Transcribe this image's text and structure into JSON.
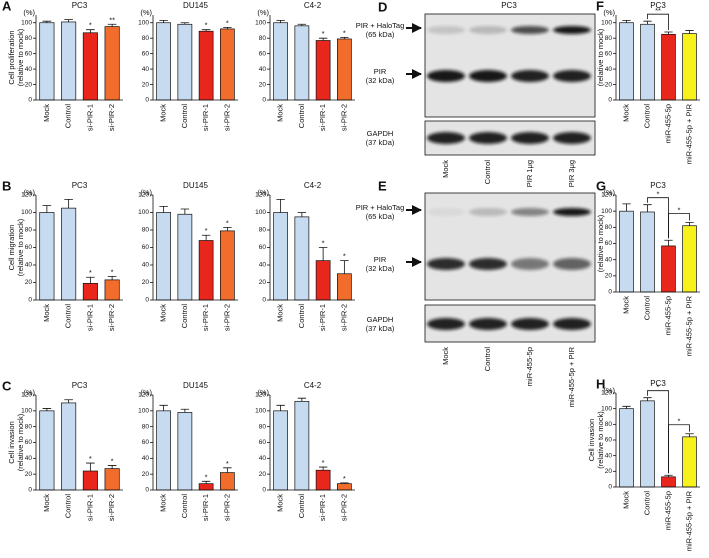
{
  "chart_data": [
    {
      "type": "bar",
      "panel": "A",
      "title": "PC3",
      "yunit": "(%)",
      "ylabel": [
        "Cell proliferation",
        "(relative to mock)"
      ],
      "categories": [
        "Mock",
        "Control",
        "si-PIR-1",
        "si-PIR-2"
      ],
      "values": [
        100,
        101,
        87,
        95
      ],
      "errors": [
        2,
        3,
        4,
        3
      ],
      "colors": [
        "#c6daf0",
        "#c6daf0",
        "#e8261c",
        "#f26c2b"
      ],
      "significance": [
        null,
        null,
        "*",
        "**"
      ],
      "ylim": [
        0,
        110
      ],
      "yticks": [
        0,
        20,
        40,
        60,
        80,
        100
      ]
    },
    {
      "type": "bar",
      "title": "DU145",
      "yunit": "(%)",
      "categories": [
        "Mock",
        "Control",
        "si-PIR-1",
        "si-PIR-2"
      ],
      "values": [
        100,
        98,
        89,
        92
      ],
      "errors": [
        3,
        2,
        2,
        2
      ],
      "colors": [
        "#c6daf0",
        "#c6daf0",
        "#e8261c",
        "#f26c2b"
      ],
      "significance": [
        null,
        null,
        "*",
        "*"
      ],
      "ylim": [
        0,
        110
      ],
      "yticks": [
        0,
        20,
        40,
        60,
        80,
        100
      ]
    },
    {
      "type": "bar",
      "title": "C4-2",
      "yunit": "(%)",
      "categories": [
        "Mock",
        "Control",
        "si-PIR-1",
        "si-PIR-2"
      ],
      "values": [
        100,
        96,
        77,
        79
      ],
      "errors": [
        3,
        2,
        3,
        2
      ],
      "colors": [
        "#c6daf0",
        "#c6daf0",
        "#e8261c",
        "#f26c2b"
      ],
      "significance": [
        null,
        null,
        "*",
        "*"
      ],
      "ylim": [
        0,
        110
      ],
      "yticks": [
        0,
        20,
        40,
        60,
        80,
        100
      ]
    },
    {
      "type": "bar",
      "panel": "B",
      "title": "PC3",
      "yunit": "(%)",
      "ylabel": [
        "Cell migration",
        "(relative to mock)"
      ],
      "categories": [
        "Mock",
        "Control",
        "si-PIR-1",
        "si-PIR-2"
      ],
      "values": [
        100,
        105,
        19,
        23
      ],
      "errors": [
        8,
        10,
        7,
        4
      ],
      "colors": [
        "#c6daf0",
        "#c6daf0",
        "#e8261c",
        "#f26c2b"
      ],
      "significance": [
        null,
        null,
        "*",
        "*"
      ],
      "ylim": [
        0,
        120
      ],
      "yticks": [
        0,
        20,
        40,
        60,
        80,
        100,
        120
      ]
    },
    {
      "type": "bar",
      "title": "DU145",
      "yunit": "(%)",
      "categories": [
        "Mock",
        "Control",
        "si-PIR-1",
        "si-PIR-2"
      ],
      "values": [
        100,
        98,
        68,
        79
      ],
      "errors": [
        7,
        6,
        6,
        4
      ],
      "colors": [
        "#c6daf0",
        "#c6daf0",
        "#e8261c",
        "#f26c2b"
      ],
      "significance": [
        null,
        null,
        "*",
        "*"
      ],
      "ylim": [
        0,
        120
      ],
      "yticks": [
        0,
        20,
        40,
        60,
        80,
        100,
        120
      ]
    },
    {
      "type": "bar",
      "title": "C4-2",
      "yunit": "(%)",
      "categories": [
        "Mock",
        "Control",
        "si-PIR-1",
        "si-PIR-2"
      ],
      "values": [
        100,
        95,
        45,
        30
      ],
      "errors": [
        15,
        5,
        15,
        15
      ],
      "colors": [
        "#c6daf0",
        "#c6daf0",
        "#e8261c",
        "#f26c2b"
      ],
      "significance": [
        null,
        null,
        "*",
        "*"
      ],
      "ylim": [
        0,
        120
      ],
      "yticks": [
        0,
        20,
        40,
        60,
        80,
        100,
        120
      ]
    },
    {
      "type": "bar",
      "panel": "C",
      "title": "PC3",
      "yunit": "(%)",
      "ylabel": [
        "Cell invasion",
        "(relative to mock)"
      ],
      "categories": [
        "Mock",
        "Control",
        "si-PIR-1",
        "si-PIR-2"
      ],
      "values": [
        100,
        110,
        24,
        27
      ],
      "errors": [
        3,
        4,
        10,
        4
      ],
      "colors": [
        "#c6daf0",
        "#c6daf0",
        "#e8261c",
        "#f26c2b"
      ],
      "significance": [
        null,
        null,
        "*",
        "*"
      ],
      "ylim": [
        0,
        120
      ],
      "yticks": [
        0,
        20,
        40,
        60,
        80,
        100,
        120
      ]
    },
    {
      "type": "bar",
      "title": "DU145",
      "yunit": "(%)",
      "categories": [
        "Mock",
        "Control",
        "si-PIR-1",
        "si-PIR-2"
      ],
      "values": [
        100,
        98,
        8,
        22
      ],
      "errors": [
        7,
        4,
        3,
        6
      ],
      "colors": [
        "#c6daf0",
        "#c6daf0",
        "#e8261c",
        "#f26c2b"
      ],
      "significance": [
        null,
        null,
        "*",
        "*"
      ],
      "ylim": [
        0,
        120
      ],
      "yticks": [
        0,
        20,
        40,
        60,
        80,
        100,
        120
      ]
    },
    {
      "type": "bar",
      "title": "C4-2",
      "yunit": "(%)",
      "categories": [
        "Mock",
        "Control",
        "si-PIR-1",
        "si-PIR-2"
      ],
      "values": [
        100,
        112,
        25,
        8
      ],
      "errors": [
        7,
        4,
        4,
        1
      ],
      "colors": [
        "#c6daf0",
        "#c6daf0",
        "#e8261c",
        "#f26c2b"
      ],
      "significance": [
        null,
        null,
        "*",
        "*"
      ],
      "ylim": [
        0,
        120
      ],
      "yticks": [
        0,
        20,
        40,
        60,
        80,
        100,
        120
      ]
    },
    {
      "type": "bar",
      "panel": "F",
      "title": "PC3",
      "yunit": "(%)",
      "ylabel": [
        "Cell proliferation",
        "(relative to mock)"
      ],
      "categories": [
        "Mock",
        "Control",
        "miR-455-5p",
        "miR-455-5p + PIR"
      ],
      "values": [
        100,
        98,
        85,
        86
      ],
      "errors": [
        3,
        4,
        3,
        4
      ],
      "colors": [
        "#c6daf0",
        "#c6daf0",
        "#e8261c",
        "#f7f21c"
      ],
      "brackets": [
        {
          "from": 1,
          "to": 2,
          "label": "**"
        }
      ],
      "ylim": [
        0,
        110
      ],
      "yticks": [
        0,
        20,
        40,
        60,
        80,
        100
      ]
    },
    {
      "type": "bar",
      "panel": "G",
      "title": "PC3",
      "yunit": "(%)",
      "ylabel": [
        "Cell migration",
        "(relative to mock)"
      ],
      "categories": [
        "Mock",
        "Control",
        "miR-455-5p",
        "miR-455-5p + PIR"
      ],
      "values": [
        100,
        99,
        57,
        82
      ],
      "errors": [
        9,
        9,
        7,
        4
      ],
      "colors": [
        "#c6daf0",
        "#c6daf0",
        "#e8261c",
        "#f7f21c"
      ],
      "brackets": [
        {
          "from": 1,
          "to": 2,
          "label": "*"
        },
        {
          "from": 2,
          "to": 3,
          "label": "*"
        }
      ],
      "ylim": [
        0,
        120
      ],
      "yticks": [
        0,
        20,
        40,
        60,
        80,
        100,
        120
      ]
    },
    {
      "type": "bar",
      "panel": "H",
      "title": "PC3",
      "yunit": "(%)",
      "ylabel": [
        "Cell invasion",
        "(relative to mock)"
      ],
      "categories": [
        "Mock",
        "Control",
        "miR-455-5p",
        "miR-455-5p + PIR"
      ],
      "values": [
        100,
        110,
        13,
        64
      ],
      "errors": [
        3,
        4,
        2,
        4
      ],
      "colors": [
        "#c6daf0",
        "#c6daf0",
        "#e8261c",
        "#f7f21c"
      ],
      "brackets": [
        {
          "from": 1,
          "to": 2,
          "label": "*"
        },
        {
          "from": 2,
          "to": 3,
          "label": "*"
        }
      ],
      "ylim": [
        0,
        120
      ],
      "yticks": [
        0,
        20,
        40,
        60,
        80,
        100,
        120
      ]
    }
  ],
  "blots": [
    {
      "panel": "D",
      "title": "PC3",
      "bands": [
        {
          "name": "PIR + HaloTag",
          "size": "(65 kDa)"
        },
        {
          "name": "PIR",
          "size": "(32 kDa)"
        },
        {
          "name": "GAPDH",
          "size": "(37 kDa)"
        }
      ],
      "lanes": [
        "Mock",
        "Control",
        "PIR 1μg",
        "PIR 3μg"
      ]
    },
    {
      "panel": "E",
      "bands": [
        {
          "name": "PIR + HaloTag",
          "size": "(65 kDa)"
        },
        {
          "name": "PIR",
          "size": "(32 kDa)"
        },
        {
          "name": "GAPDH",
          "size": "(37 kDa)"
        }
      ],
      "lanes": [
        "Mock",
        "Control",
        "miR-455-5p",
        "miR-455-5p + PIR"
      ]
    }
  ]
}
